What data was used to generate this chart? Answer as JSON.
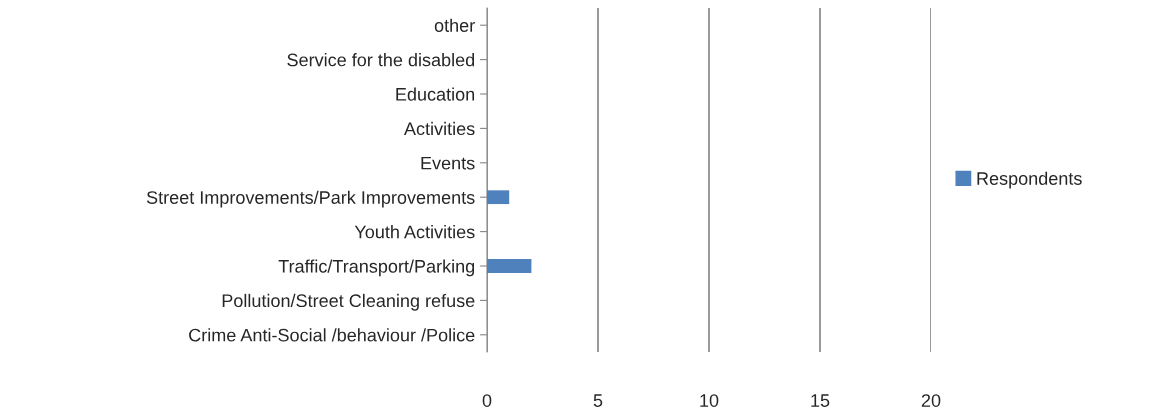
{
  "chart_data": {
    "type": "bar",
    "orientation": "horizontal",
    "categories": [
      "other",
      "Service for the disabled",
      "Education",
      "Activities",
      "Events",
      "Street Improvements/Park Improvements",
      "Youth Activities",
      "Traffic/Transport/Parking",
      "Pollution/Street Cleaning refuse",
      "Crime Anti-Social /behaviour /Police"
    ],
    "series": [
      {
        "name": "Respondents",
        "color": "#4f81bd",
        "values": [
          0,
          0,
          0,
          0,
          0,
          1,
          0,
          2,
          0,
          0
        ]
      }
    ],
    "xlim": [
      0,
      20
    ],
    "xticks": [
      0,
      5,
      10,
      15,
      20
    ],
    "grid": "x",
    "legend": "right"
  }
}
